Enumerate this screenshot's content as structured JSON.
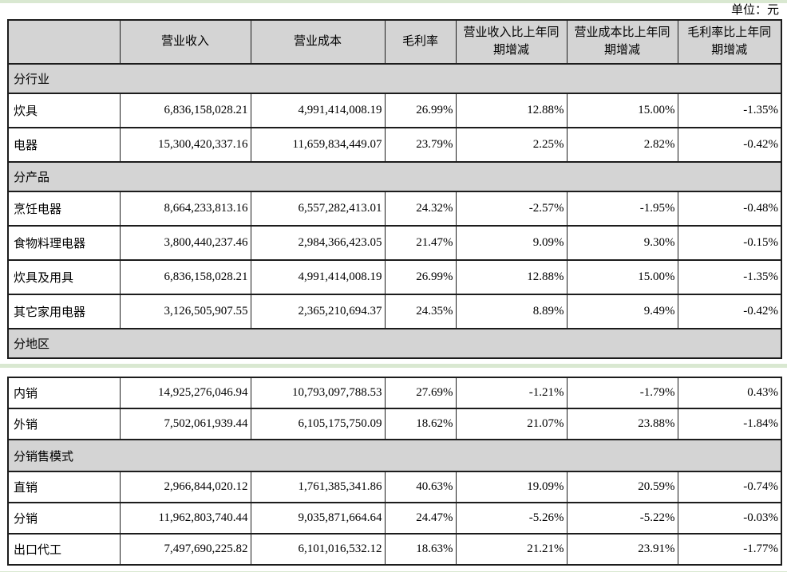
{
  "page": {
    "unit_label": "单位：元"
  },
  "colors": {
    "header_bg": "#d4d4d4",
    "accent_green": "#d9e8d1",
    "border": "#1c1c1c"
  },
  "columns": [
    "",
    "营业收入",
    "营业成本",
    "毛利率",
    "营业收入比上年同期增减",
    "营业成本比上年同期增减",
    "毛利率比上年同期增减"
  ],
  "tables": [
    {
      "id": "table1",
      "has_header": true,
      "rows": [
        {
          "type": "section",
          "label": "分行业"
        },
        {
          "type": "data",
          "label": "炊具",
          "values": [
            "6,836,158,028.21",
            "4,991,414,008.19",
            "26.99%",
            "12.88%",
            "15.00%",
            "-1.35%"
          ]
        },
        {
          "type": "data",
          "label": "电器",
          "values": [
            "15,300,420,337.16",
            "11,659,834,449.07",
            "23.79%",
            "2.25%",
            "2.82%",
            "-0.42%"
          ]
        },
        {
          "type": "section",
          "label": "分产品"
        },
        {
          "type": "data",
          "label": "烹饪电器",
          "values": [
            "8,664,233,813.16",
            "6,557,282,413.01",
            "24.32%",
            "-2.57%",
            "-1.95%",
            "-0.48%"
          ]
        },
        {
          "type": "data",
          "label": "食物料理电器",
          "values": [
            "3,800,440,237.46",
            "2,984,366,423.05",
            "21.47%",
            "9.09%",
            "9.30%",
            "-0.15%"
          ]
        },
        {
          "type": "data",
          "label": "炊具及用具",
          "values": [
            "6,836,158,028.21",
            "4,991,414,008.19",
            "26.99%",
            "12.88%",
            "15.00%",
            "-1.35%"
          ]
        },
        {
          "type": "data",
          "label": "其它家用电器",
          "values": [
            "3,126,505,907.55",
            "2,365,210,694.37",
            "24.35%",
            "8.89%",
            "9.49%",
            "-0.42%"
          ]
        },
        {
          "type": "section",
          "label": "分地区"
        }
      ]
    },
    {
      "id": "table2",
      "has_header": false,
      "rows": [
        {
          "type": "data",
          "label": "内销",
          "values": [
            "14,925,276,046.94",
            "10,793,097,788.53",
            "27.69%",
            "-1.21%",
            "-1.79%",
            "0.43%"
          ]
        },
        {
          "type": "data",
          "label": "外销",
          "values": [
            "7,502,061,939.44",
            "6,105,175,750.09",
            "18.62%",
            "21.07%",
            "23.88%",
            "-1.84%"
          ]
        },
        {
          "type": "section",
          "label": "分销售模式"
        },
        {
          "type": "data",
          "label": "直销",
          "values": [
            "2,966,844,020.12",
            "1,761,385,341.86",
            "40.63%",
            "19.09%",
            "20.59%",
            "-0.74%"
          ]
        },
        {
          "type": "data",
          "label": "分销",
          "values": [
            "11,962,803,740.44",
            "9,035,871,664.64",
            "24.47%",
            "-5.26%",
            "-5.22%",
            "-0.03%"
          ]
        },
        {
          "type": "data",
          "label": "出口代工",
          "values": [
            "7,497,690,225.82",
            "6,101,016,532.12",
            "18.63%",
            "21.21%",
            "23.91%",
            "-1.77%"
          ]
        }
      ]
    }
  ]
}
